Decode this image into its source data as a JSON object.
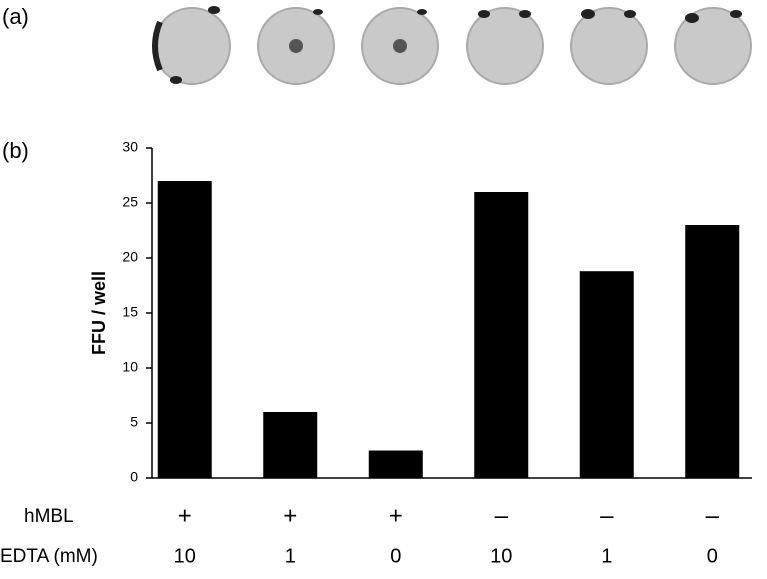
{
  "panel_labels": [
    "(a)",
    "(b)"
  ],
  "chart_data": {
    "type": "bar",
    "ylabel": "FFU / well",
    "categories": [
      null,
      null,
      null,
      null,
      null,
      null
    ],
    "values": [
      27,
      6,
      2.5,
      26,
      18.8,
      23
    ],
    "color": "#000000",
    "ylim": [
      0,
      30
    ],
    "yticks": [
      0,
      5,
      10,
      15,
      20,
      25,
      30
    ],
    "grid": false,
    "condition_rows": [
      {
        "label": "hMBL",
        "values": [
          "+",
          "+",
          "+",
          "–",
          "–",
          "–"
        ]
      },
      {
        "label": "EDTA (mM)",
        "values": [
          10,
          1,
          0,
          10,
          1,
          0
        ]
      }
    ]
  }
}
